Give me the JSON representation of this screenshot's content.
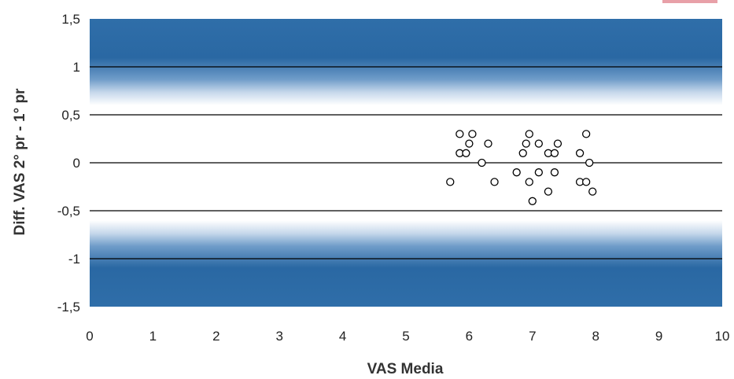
{
  "chart_data": {
    "type": "scatter",
    "title": "",
    "xlabel": "VAS Media",
    "ylabel": "Diff. VAS  2° pr - 1° pr",
    "xlim": [
      0,
      10
    ],
    "ylim": [
      -1.5,
      1.5
    ],
    "x_ticks": [
      0,
      1,
      2,
      3,
      4,
      5,
      6,
      7,
      8,
      9,
      10
    ],
    "x_tick_labels": [
      "0",
      "1",
      "2",
      "3",
      "4",
      "5",
      "6",
      "7",
      "8",
      "9",
      "10"
    ],
    "y_ticks": [
      1.5,
      1,
      0.5,
      0,
      -0.5,
      -1,
      -1.5
    ],
    "y_tick_labels": [
      "1,5",
      "1",
      "0,5",
      "0",
      "-0,5",
      "-1",
      "-1,5"
    ],
    "grid": true,
    "marker": "circle-open",
    "background_bands": "blue gradient beyond ±1",
    "colors": {
      "band_dark": "#2b6aa6",
      "band_mid": "#4f86bd",
      "band_light": "#e9f0f8",
      "line": "#000000",
      "marker": "#000000"
    },
    "points": [
      {
        "x": 5.7,
        "y": -0.2
      },
      {
        "x": 5.85,
        "y": 0.3
      },
      {
        "x": 5.85,
        "y": 0.1
      },
      {
        "x": 5.95,
        "y": 0.1
      },
      {
        "x": 6.0,
        "y": 0.2
      },
      {
        "x": 6.05,
        "y": 0.3
      },
      {
        "x": 6.2,
        "y": 0.0
      },
      {
        "x": 6.3,
        "y": 0.2
      },
      {
        "x": 6.4,
        "y": -0.2
      },
      {
        "x": 6.75,
        "y": -0.1
      },
      {
        "x": 6.85,
        "y": 0.1
      },
      {
        "x": 6.9,
        "y": 0.2
      },
      {
        "x": 6.95,
        "y": -0.2
      },
      {
        "x": 6.95,
        "y": 0.3
      },
      {
        "x": 7.0,
        "y": -0.4
      },
      {
        "x": 7.1,
        "y": -0.1
      },
      {
        "x": 7.1,
        "y": 0.2
      },
      {
        "x": 7.25,
        "y": 0.1
      },
      {
        "x": 7.25,
        "y": -0.3
      },
      {
        "x": 7.35,
        "y": 0.1
      },
      {
        "x": 7.35,
        "y": -0.1
      },
      {
        "x": 7.4,
        "y": 0.2
      },
      {
        "x": 7.75,
        "y": -0.2
      },
      {
        "x": 7.75,
        "y": 0.1
      },
      {
        "x": 7.85,
        "y": -0.2
      },
      {
        "x": 7.85,
        "y": 0.3
      },
      {
        "x": 7.9,
        "y": 0.0
      },
      {
        "x": 7.95,
        "y": -0.3
      }
    ]
  }
}
